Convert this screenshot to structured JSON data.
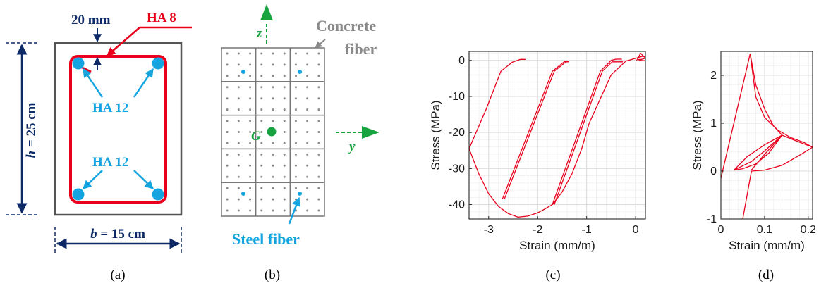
{
  "panels": {
    "a": {
      "label": "(a)",
      "cover": "20 mm",
      "stirrup": "HA 8",
      "bars_top": "HA 12",
      "bars_bottom": "HA 12",
      "height_var": "h",
      "height_val": " = 25 cm",
      "width_var": "b",
      "width_val": " = 15 cm"
    },
    "b": {
      "label": "(b)",
      "axis_z": "z",
      "axis_y": "y",
      "centroid": "G",
      "concrete_line1": "Concrete",
      "concrete_line2": "fiber",
      "steel": "Steel fiber"
    },
    "c": {
      "label": "(c)"
    },
    "d": {
      "label": "(d)"
    }
  },
  "colors": {
    "red": "#e8001c",
    "navy": "#0d2a66",
    "cyan": "#14a5e0",
    "green": "#17a340",
    "gray": "#8a8a8a",
    "curve": "#e8001c"
  },
  "chart_data": [
    {
      "type": "line",
      "panel": "c",
      "xlabel": "Strain (mm/m)",
      "ylabel": "Stress (MPa)",
      "xlim": [
        -3.4,
        0.2
      ],
      "ylim": [
        -44,
        2.5
      ],
      "xticks": [
        -3,
        -2,
        -1,
        0
      ],
      "yticks": [
        0,
        -10,
        -20,
        -30,
        -40
      ],
      "grid": true,
      "series": [
        {
          "x": [
            -3.4,
            -3.2,
            -3.0,
            -2.8,
            -2.6,
            -2.4,
            -2.2,
            -2.0,
            -1.85,
            -1.7,
            -1.5,
            -1.3,
            -1.1,
            -0.95
          ],
          "y": [
            -24.5,
            -31.5,
            -37.0,
            -40.5,
            -42.5,
            -43.5,
            -43.2,
            -42.3,
            -41.2,
            -40.0,
            -36.5,
            -31.5,
            -24.5,
            -17.5
          ]
        },
        {
          "x": [
            -3.4,
            -3.05,
            -2.75,
            -2.52,
            -2.35,
            -2.3,
            -2.25
          ],
          "y": [
            -24.5,
            -13.5,
            -3.0,
            -0.5,
            0.3,
            0.3,
            0.3
          ]
        },
        {
          "x": [
            -2.72,
            -1.7,
            -1.45,
            -1.38
          ],
          "y": [
            -38.5,
            -3.0,
            -0.3,
            -0.3
          ]
        },
        {
          "x": [
            -2.68,
            -1.66,
            -1.42,
            -1.36
          ],
          "y": [
            -38.5,
            -3.0,
            -0.4,
            -0.4
          ]
        },
        {
          "x": [
            -1.7,
            -0.72,
            -0.5,
            -0.4,
            -0.32,
            -0.28
          ],
          "y": [
            -40.0,
            -3.0,
            0.0,
            0.35,
            0.35,
            0.35
          ]
        },
        {
          "x": [
            -1.66,
            -0.68,
            -0.48,
            -0.38,
            -0.3,
            -0.26
          ],
          "y": [
            -40.0,
            -3.0,
            -0.4,
            -0.4,
            -0.4,
            -0.4
          ]
        },
        {
          "x": [
            -0.95,
            -0.5,
            -0.2,
            0.05,
            0.15,
            0.2
          ],
          "y": [
            -17.5,
            -4.0,
            -0.2,
            0.8,
            1.2,
            1.0
          ]
        },
        {
          "x": [
            0.02,
            0.06,
            0.1,
            0.2,
            0.12,
            0.05,
            0.1,
            0.2
          ],
          "y": [
            0.0,
            0.9,
            2.0,
            0.6,
            0.3,
            0.25,
            0.0,
            -0.1
          ]
        }
      ]
    },
    {
      "type": "line",
      "panel": "d",
      "xlabel": "Strain (mm/m)",
      "ylabel": "Stress (MPa)",
      "xlim": [
        0,
        0.21
      ],
      "ylim": [
        -1,
        2.5
      ],
      "xticks": [
        0,
        0.1,
        0.2
      ],
      "yticks": [
        -1,
        0,
        1,
        2
      ],
      "grid": true,
      "series": [
        {
          "x": [
            0,
            0.067
          ],
          "y": [
            -0.15,
            2.45
          ]
        },
        {
          "x": [
            0.067,
            0.08,
            0.1,
            0.13,
            0.16,
            0.19,
            0.21
          ],
          "y": [
            2.45,
            1.55,
            1.12,
            0.86,
            0.7,
            0.6,
            0.5
          ]
        },
        {
          "x": [
            0.067,
            0.08,
            0.1,
            0.12,
            0.14
          ],
          "y": [
            2.45,
            1.8,
            1.3,
            0.95,
            0.75
          ]
        },
        {
          "x": [
            0.14,
            0.1,
            0.06,
            0.03
          ],
          "y": [
            0.75,
            0.55,
            0.3,
            0.02
          ]
        },
        {
          "x": [
            0.14,
            0.11,
            0.08,
            0.05,
            0.03
          ],
          "y": [
            0.75,
            0.38,
            0.15,
            0.05,
            0.02
          ]
        },
        {
          "x": [
            0.03,
            0.07,
            0.1,
            0.14
          ],
          "y": [
            0.02,
            0.2,
            0.42,
            0.75
          ]
        },
        {
          "x": [
            0.05,
            0.07
          ],
          "y": [
            -1.0,
            0.0
          ]
        },
        {
          "x": [
            0.07,
            0.1,
            0.14,
            0.18,
            0.21
          ],
          "y": [
            0.0,
            0.02,
            0.12,
            0.33,
            0.5
          ]
        },
        {
          "x": [
            0.21,
            0.17,
            0.14,
            0.1,
            0.07
          ],
          "y": [
            0.5,
            0.64,
            0.75,
            0.35,
            0.02
          ]
        }
      ]
    }
  ]
}
